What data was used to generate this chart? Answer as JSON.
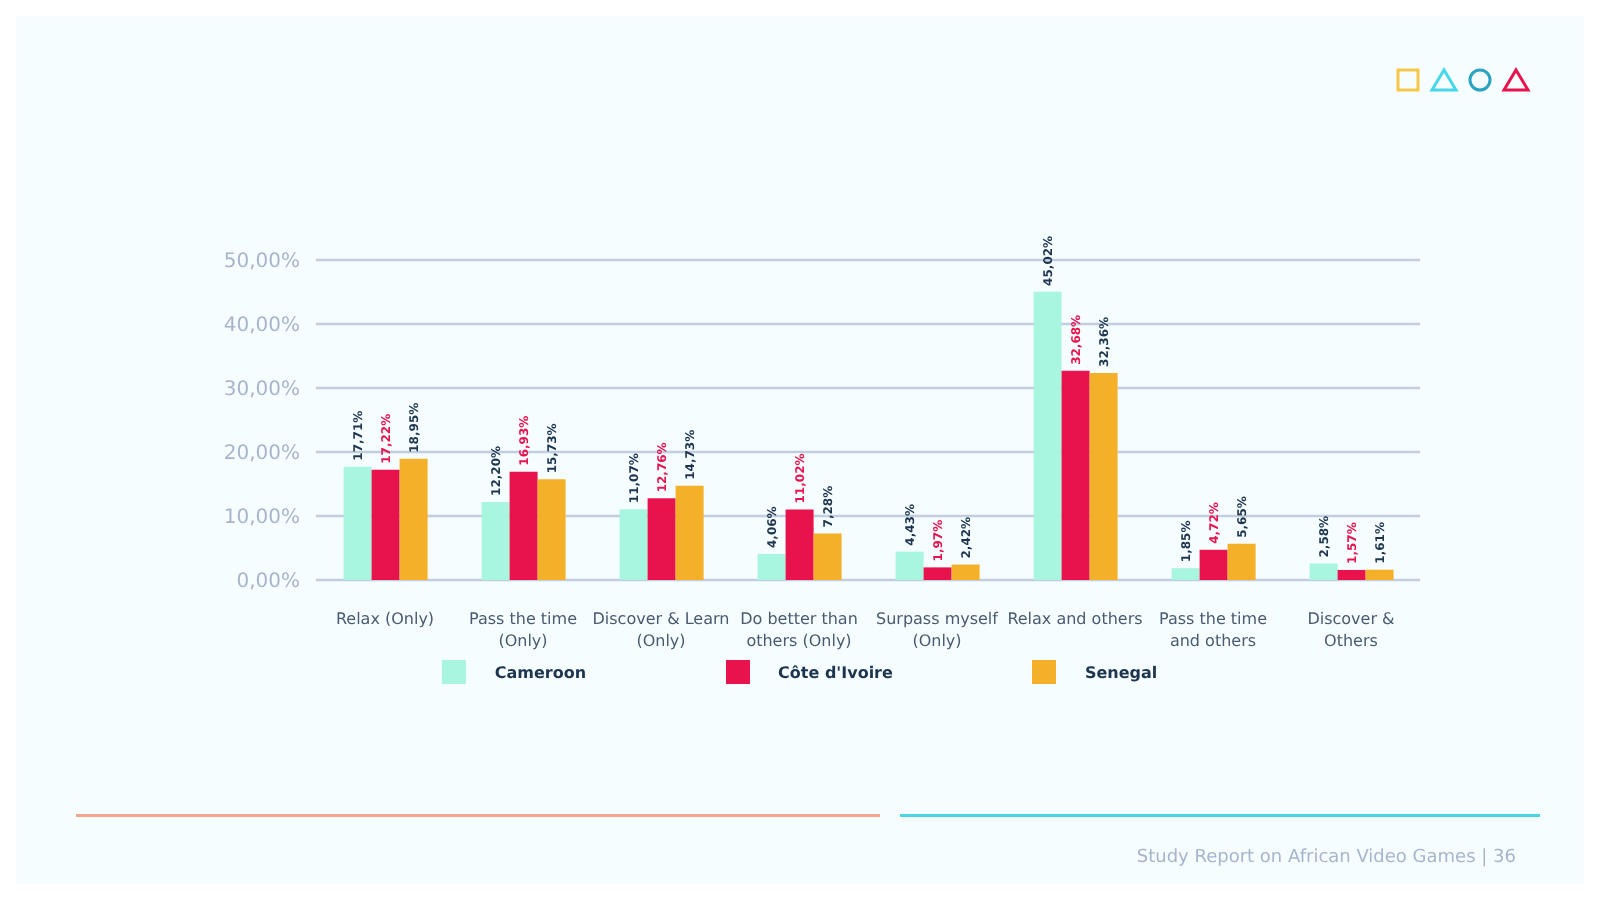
{
  "chart_data": {
    "type": "bar",
    "categories": [
      "Relax (Only)",
      "Pass the time (Only)",
      "Discover & Learn (Only)",
      "Do better than others (Only)",
      "Surpass myself (Only)",
      "Relax and others",
      "Pass the time and others",
      "Discover & Others"
    ],
    "series": [
      {
        "name": "Cameroon",
        "color": "#a8f5e0",
        "values": [
          17.71,
          12.2,
          11.07,
          4.06,
          4.43,
          45.02,
          1.85,
          2.58
        ],
        "value_labels": [
          "17,71%",
          "12,20%",
          "11,07%",
          "4,06%",
          "4,43%",
          "45,02%",
          "1,85%",
          "2,58%"
        ]
      },
      {
        "name": "Côte d'Ivoire",
        "color": "#e8124c",
        "values": [
          17.22,
          16.93,
          12.76,
          11.02,
          1.97,
          32.68,
          4.72,
          1.57
        ],
        "value_labels": [
          "17,22%",
          "16,93%",
          "12,76%",
          "11,02%",
          "1,97%",
          "32,68%",
          "4,72%",
          "1,57%"
        ]
      },
      {
        "name": "Senegal",
        "color": "#f5b02a",
        "values": [
          18.95,
          15.73,
          14.73,
          7.28,
          2.42,
          32.36,
          5.65,
          1.61
        ],
        "value_labels": [
          "18,95%",
          "15,73%",
          "14,73%",
          "7,28%",
          "2,42%",
          "32,36%",
          "5,65%",
          "1,61%"
        ]
      }
    ],
    "ylim": [
      0,
      50
    ],
    "yticks": [
      {
        "value": 0,
        "label": "0,00%"
      },
      {
        "value": 10,
        "label": "10,00%"
      },
      {
        "value": 20,
        "label": "20,00%"
      },
      {
        "value": 30,
        "label": "30,00%"
      },
      {
        "value": 40,
        "label": "40,00%"
      },
      {
        "value": 50,
        "label": "50,00%"
      }
    ],
    "grid": "y",
    "legend": "bottom",
    "annotations": [
      "Study Report on African Video Games | 36"
    ]
  }
}
